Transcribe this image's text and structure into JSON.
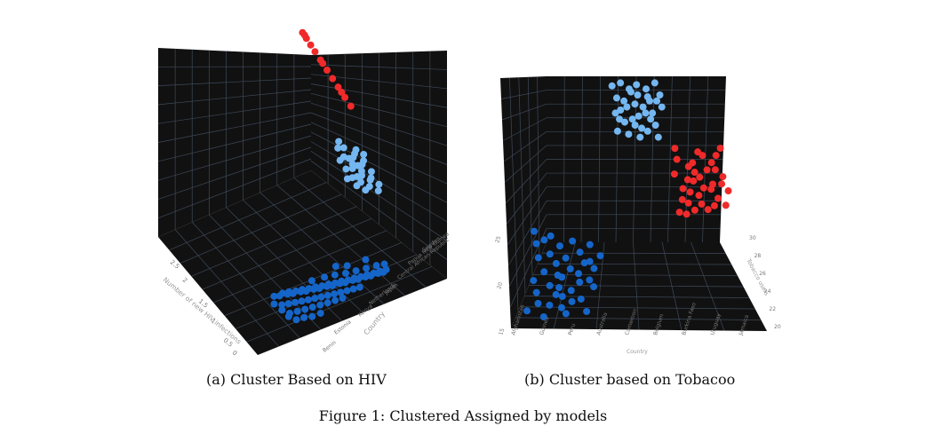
{
  "figure_caption": "Figure 1: Clustered Assigned by models",
  "colors": {
    "background": "#111111",
    "grid": "#3e4a5a",
    "cluster_dark_blue": "#1565c9",
    "cluster_light_blue": "#74b6f0",
    "cluster_red": "#f02a2a",
    "axis_text": "#777777"
  },
  "chart_data": [
    {
      "type": "scatter",
      "projection": "3d",
      "caption": "(a) Cluster Based on HIV",
      "axes": {
        "x": {
          "label": "Country",
          "ticks": [
            "Benin",
            "Estonia",
            "Kenya",
            "Netherlands",
            "Japan",
            "Central African Republic",
            "Papua New Guinea",
            "Sweden"
          ]
        },
        "y": {
          "label": "Number of new HIV infections",
          "ticks": [
            "0",
            "0.5",
            "1",
            "1.5",
            "2",
            "2.5"
          ]
        },
        "z": {
          "label": ""
        }
      },
      "grid": true,
      "series": [
        {
          "cluster": "low",
          "color": "#1565c9",
          "points": [
            [
              0.08,
              0.05
            ],
            [
              0.12,
              0.1
            ],
            [
              0.15,
              0.08
            ],
            [
              0.18,
              0.15
            ],
            [
              0.2,
              0.12
            ],
            [
              0.22,
              0.2
            ],
            [
              0.25,
              0.18
            ],
            [
              0.28,
              0.25
            ],
            [
              0.3,
              0.22
            ],
            [
              0.32,
              0.3
            ],
            [
              0.35,
              0.28
            ],
            [
              0.38,
              0.35
            ],
            [
              0.4,
              0.32
            ],
            [
              0.42,
              0.4
            ],
            [
              0.45,
              0.38
            ],
            [
              0.48,
              0.45
            ],
            [
              0.5,
              0.42
            ],
            [
              0.52,
              0.5
            ],
            [
              0.55,
              0.48
            ],
            [
              0.58,
              0.55
            ],
            [
              0.6,
              0.52
            ],
            [
              0.62,
              0.6
            ],
            [
              0.65,
              0.58
            ],
            [
              0.68,
              0.65
            ],
            [
              0.7,
              0.62
            ],
            [
              0.72,
              0.7
            ],
            [
              0.75,
              0.68
            ],
            [
              0.78,
              0.75
            ],
            [
              0.8,
              0.72
            ],
            [
              0.82,
              0.8
            ],
            [
              0.85,
              0.78
            ],
            [
              0.88,
              0.85
            ],
            [
              0.9,
              0.82
            ],
            [
              0.92,
              0.9
            ],
            [
              0.95,
              0.88
            ],
            [
              0.1,
              0.3
            ],
            [
              0.15,
              0.35
            ],
            [
              0.2,
              0.4
            ],
            [
              0.25,
              0.45
            ],
            [
              0.3,
              0.5
            ],
            [
              0.35,
              0.55
            ],
            [
              0.4,
              0.6
            ],
            [
              0.45,
              0.65
            ],
            [
              0.5,
              0.7
            ],
            [
              0.55,
              0.75
            ],
            [
              0.6,
              0.8
            ],
            [
              0.65,
              0.85
            ],
            [
              0.7,
              0.9
            ],
            [
              0.12,
              0.55
            ],
            [
              0.18,
              0.6
            ],
            [
              0.24,
              0.65
            ],
            [
              0.3,
              0.7
            ],
            [
              0.36,
              0.75
            ],
            [
              0.42,
              0.8
            ],
            [
              0.48,
              0.85
            ],
            [
              0.54,
              0.9
            ],
            [
              0.05,
              0.2
            ],
            [
              0.08,
              0.4
            ],
            [
              0.1,
              0.6
            ],
            [
              0.14,
              0.75
            ],
            [
              0.2,
              0.8
            ],
            [
              0.26,
              0.88
            ],
            [
              0.33,
              0.92
            ],
            [
              0.58,
              0.3
            ],
            [
              0.66,
              0.4
            ],
            [
              0.74,
              0.48
            ],
            [
              0.82,
              0.56
            ],
            [
              0.9,
              0.64
            ],
            [
              0.96,
              0.72
            ],
            [
              0.4,
              0.15
            ],
            [
              0.5,
              0.22
            ],
            [
              0.62,
              0.12
            ],
            [
              0.7,
              0.25
            ],
            [
              0.85,
              0.35
            ]
          ]
        },
        {
          "cluster": "medium",
          "color": "#74b6f0",
          "points": [
            [
              0.1,
              0.2
            ],
            [
              0.2,
              0.35
            ],
            [
              0.3,
              0.15
            ],
            [
              0.4,
              0.45
            ],
            [
              0.5,
              0.3
            ],
            [
              0.6,
              0.55
            ],
            [
              0.7,
              0.4
            ],
            [
              0.8,
              0.65
            ],
            [
              0.9,
              0.5
            ],
            [
              0.15,
              0.6
            ],
            [
              0.25,
              0.75
            ],
            [
              0.35,
              0.55
            ],
            [
              0.45,
              0.8
            ],
            [
              0.55,
              0.65
            ],
            [
              0.65,
              0.85
            ],
            [
              0.75,
              0.7
            ],
            [
              0.85,
              0.9
            ],
            [
              0.05,
              0.45
            ],
            [
              0.95,
              0.75
            ],
            [
              0.5,
              0.95
            ],
            [
              0.3,
              0.9
            ],
            [
              0.7,
              0.1
            ],
            [
              0.2,
              0.05
            ],
            [
              0.6,
              0.2
            ],
            [
              0.4,
              0.7
            ],
            [
              0.8,
              0.3
            ],
            [
              0.1,
              0.8
            ],
            [
              0.9,
              0.15
            ],
            [
              0.55,
              0.45
            ],
            [
              0.35,
              0.35
            ]
          ]
        },
        {
          "cluster": "high",
          "color": "#f02a2a",
          "points": [
            [
              0.1,
              0.05
            ],
            [
              0.18,
              0.12
            ],
            [
              0.25,
              0.2
            ],
            [
              0.32,
              0.28
            ],
            [
              0.4,
              0.38
            ],
            [
              0.5,
              0.5
            ],
            [
              0.58,
              0.6
            ],
            [
              0.66,
              0.7
            ],
            [
              0.75,
              0.82
            ],
            [
              0.85,
              0.92
            ],
            [
              0.2,
              0.08
            ],
            [
              0.45,
              0.42
            ],
            [
              0.7,
              0.76
            ]
          ]
        }
      ]
    },
    {
      "type": "scatter",
      "projection": "3d",
      "caption": "(b) Cluster based on Tobacoo",
      "axes": {
        "x": {
          "label": "Country",
          "ticks": [
            "Afghanistan",
            "Guinea",
            "Peru",
            "Australia",
            "Cameroon",
            "Belgium",
            "Burkina Faso",
            "Uruguay",
            "Jamaica"
          ]
        },
        "y": {
          "label": "Tobacco users",
          "ticks": [
            "20",
            "22",
            "24",
            "26",
            "28",
            "30"
          ]
        },
        "z": {
          "label": "",
          "ticks": [
            "15",
            "20",
            "25"
          ]
        }
      },
      "grid": true,
      "series": [
        {
          "cluster": "low",
          "color": "#1565c9",
          "points": [
            [
              0.05,
              0.02
            ],
            [
              0.1,
              0.15
            ],
            [
              0.15,
              0.3
            ],
            [
              0.2,
              0.1
            ],
            [
              0.25,
              0.45
            ],
            [
              0.3,
              0.25
            ],
            [
              0.35,
              0.6
            ],
            [
              0.4,
              0.35
            ],
            [
              0.45,
              0.7
            ],
            [
              0.5,
              0.5
            ],
            [
              0.55,
              0.85
            ],
            [
              0.6,
              0.4
            ],
            [
              0.65,
              0.65
            ],
            [
              0.7,
              0.2
            ],
            [
              0.75,
              0.55
            ],
            [
              0.8,
              0.75
            ],
            [
              0.85,
              0.3
            ],
            [
              0.9,
              0.9
            ],
            [
              0.95,
              0.6
            ],
            [
              0.12,
              0.55
            ],
            [
              0.22,
              0.8
            ],
            [
              0.32,
              0.95
            ],
            [
              0.42,
              0.15
            ],
            [
              0.52,
              0.28
            ],
            [
              0.62,
              0.92
            ],
            [
              0.72,
              0.45
            ],
            [
              0.82,
              0.1
            ],
            [
              0.92,
              0.38
            ],
            [
              0.18,
              0.68
            ],
            [
              0.28,
              0.05
            ],
            [
              0.38,
              0.82
            ],
            [
              0.48,
              0.62
            ],
            [
              0.58,
              0.08
            ],
            [
              0.68,
              0.78
            ],
            [
              0.78,
              0.32
            ],
            [
              0.88,
              0.52
            ],
            [
              0.08,
              0.88
            ],
            [
              0.98,
              0.22
            ],
            [
              0.44,
              0.48
            ],
            [
              0.54,
              0.72
            ]
          ]
        },
        {
          "cluster": "medium",
          "color": "#74b6f0",
          "points": [
            [
              0.05,
              0.1
            ],
            [
              0.12,
              0.3
            ],
            [
              0.18,
              0.5
            ],
            [
              0.25,
              0.7
            ],
            [
              0.32,
              0.9
            ],
            [
              0.38,
              0.2
            ],
            [
              0.45,
              0.4
            ],
            [
              0.52,
              0.6
            ],
            [
              0.58,
              0.8
            ],
            [
              0.65,
              0.15
            ],
            [
              0.72,
              0.35
            ],
            [
              0.78,
              0.55
            ],
            [
              0.85,
              0.75
            ],
            [
              0.92,
              0.95
            ],
            [
              0.1,
              0.85
            ],
            [
              0.2,
              0.05
            ],
            [
              0.3,
              0.45
            ],
            [
              0.4,
              0.65
            ],
            [
              0.5,
              0.25
            ],
            [
              0.6,
              0.45
            ],
            [
              0.7,
              0.85
            ],
            [
              0.8,
              0.05
            ],
            [
              0.9,
              0.25
            ],
            [
              0.15,
              0.65
            ],
            [
              0.35,
              0.15
            ],
            [
              0.55,
              0.95
            ],
            [
              0.75,
              0.65
            ],
            [
              0.95,
              0.45
            ],
            [
              0.25,
              0.35
            ],
            [
              0.45,
              0.75
            ],
            [
              0.65,
              0.55
            ],
            [
              0.85,
              0.35
            ],
            [
              0.08,
              0.55
            ],
            [
              0.48,
              0.08
            ],
            [
              0.68,
              0.28
            ]
          ]
        },
        {
          "cluster": "high",
          "color": "#f02a2a",
          "points": [
            [
              0.05,
              0.4
            ],
            [
              0.12,
              0.2
            ],
            [
              0.18,
              0.6
            ],
            [
              0.25,
              0.8
            ],
            [
              0.32,
              0.3
            ],
            [
              0.38,
              0.5
            ],
            [
              0.45,
              0.7
            ],
            [
              0.52,
              0.1
            ],
            [
              0.58,
              0.9
            ],
            [
              0.65,
              0.35
            ],
            [
              0.72,
              0.55
            ],
            [
              0.78,
              0.75
            ],
            [
              0.85,
              0.15
            ],
            [
              0.92,
              0.45
            ],
            [
              0.98,
              0.65
            ],
            [
              0.1,
              0.05
            ],
            [
              0.2,
              0.95
            ],
            [
              0.3,
              0.65
            ],
            [
              0.4,
              0.25
            ],
            [
              0.5,
              0.45
            ],
            [
              0.6,
              0.15
            ],
            [
              0.7,
              0.85
            ],
            [
              0.8,
              0.35
            ],
            [
              0.9,
              0.85
            ],
            [
              0.15,
              0.75
            ],
            [
              0.35,
              0.9
            ],
            [
              0.55,
              0.6
            ],
            [
              0.75,
              0.25
            ],
            [
              0.95,
              0.05
            ],
            [
              0.28,
              0.48
            ],
            [
              0.48,
              0.82
            ],
            [
              0.68,
              0.62
            ],
            [
              0.88,
              0.55
            ],
            [
              0.08,
              0.92
            ],
            [
              0.42,
              0.38
            ]
          ]
        }
      ]
    }
  ]
}
